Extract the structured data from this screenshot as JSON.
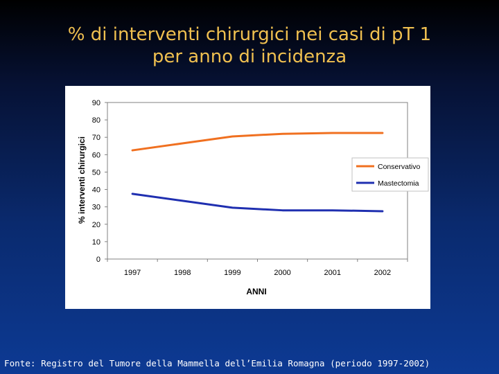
{
  "slide": {
    "title_line1": "% di interventi chirurgici nei casi di pT 1",
    "title_line2": "per anno di incidenza",
    "source": "Fonte: Registro del Tumore della Mammella dell’Emilia Romagna (periodo 1997-2002)"
  },
  "chart_data": {
    "type": "line",
    "title": "",
    "xlabel": "ANNI",
    "ylabel": "% interventi chirurgici",
    "categories": [
      "1997",
      "1998",
      "1999",
      "2000",
      "2001",
      "2002"
    ],
    "ylim": [
      0,
      90
    ],
    "yticks": [
      0,
      10,
      20,
      30,
      40,
      50,
      60,
      70,
      80,
      90
    ],
    "grid": false,
    "legend": "right",
    "series": [
      {
        "name": "Conservativo",
        "color": "#f07020",
        "values": [
          62.5,
          66.5,
          70.5,
          72,
          72.5,
          72.5
        ]
      },
      {
        "name": "Mastectomia",
        "color": "#1f2fb0",
        "values": [
          37.5,
          33.5,
          29.5,
          28,
          28,
          27.5
        ]
      }
    ]
  }
}
